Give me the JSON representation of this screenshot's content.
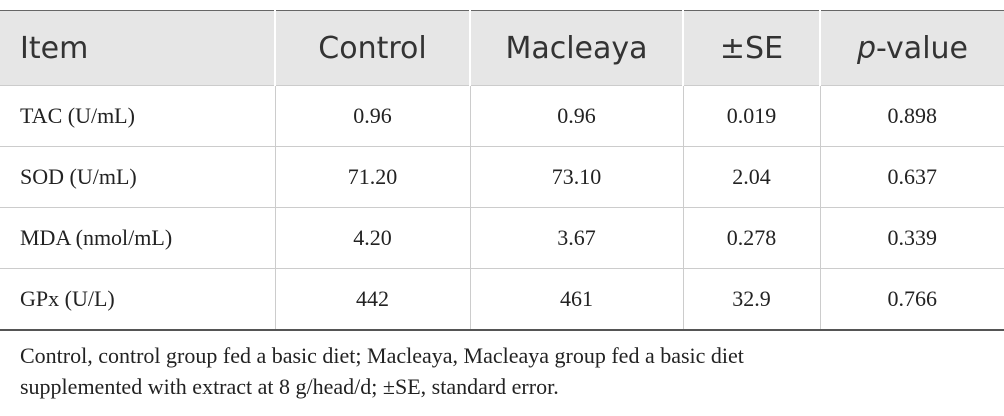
{
  "table": {
    "header": [
      "Item",
      "Control",
      "Macleaya",
      "±SE",
      {
        "italic": "p",
        "rest": "-value"
      }
    ],
    "rows": [
      [
        "TAC (U/mL)",
        "0.96",
        "0.96",
        "0.019",
        "0.898"
      ],
      [
        "SOD (U/mL)",
        "71.20",
        "73.10",
        "2.04",
        "0.637"
      ],
      [
        "MDA (nmol/mL)",
        "4.20",
        "3.67",
        "0.278",
        "0.339"
      ],
      [
        "GPx (U/L)",
        "442",
        "461",
        "32.9",
        "0.766"
      ]
    ]
  },
  "footnote": [
    "Control, control group fed a basic diet; Macleaya, Macleaya group fed a basic diet",
    "supplemented with extract at 8 g/head/d; ±SE, standard error."
  ]
}
